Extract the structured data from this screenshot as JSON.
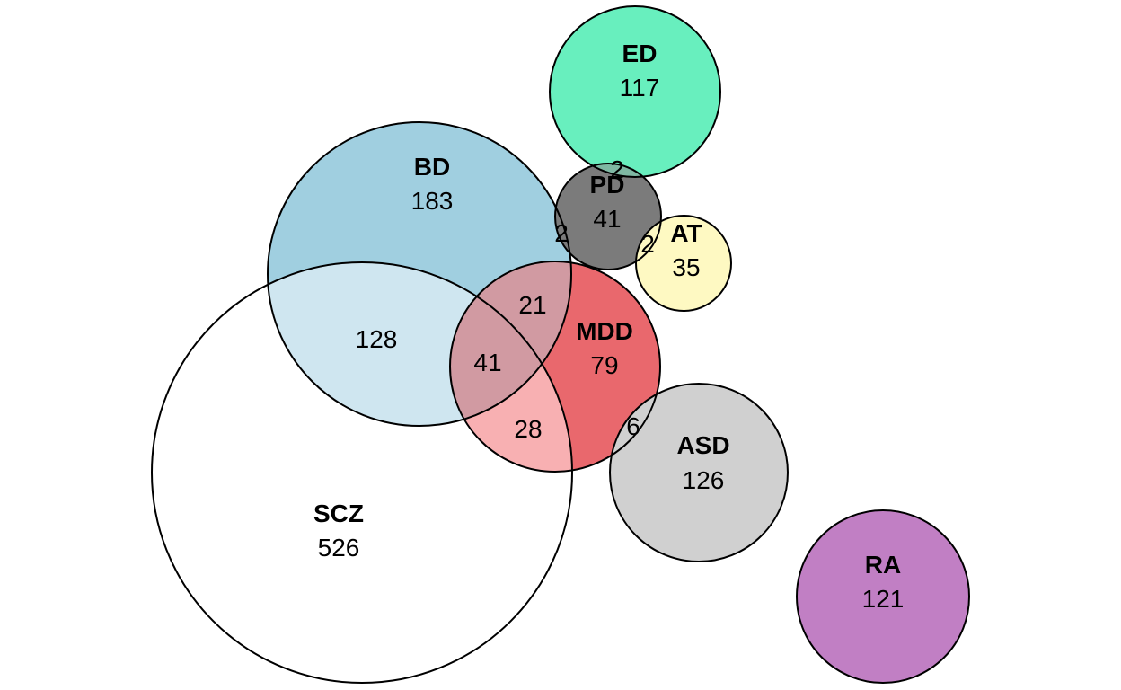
{
  "chart_data": {
    "type": "euler",
    "sets": [
      {
        "id": "scz",
        "name": "SCZ",
        "count": "526",
        "color": "#ffffff"
      },
      {
        "id": "bd",
        "name": "BD",
        "count": "183",
        "color": "#a0cfe0"
      },
      {
        "id": "mdd",
        "name": "MDD",
        "count": "79",
        "color": "#e9686d"
      },
      {
        "id": "ed",
        "name": "ED",
        "count": "117",
        "color": "#68efbe"
      },
      {
        "id": "pd",
        "name": "PD",
        "count": "41",
        "color": "#7b7b7b"
      },
      {
        "id": "at",
        "name": "AT",
        "count": "35",
        "color": "#fef9c2"
      },
      {
        "id": "asd",
        "name": "ASD",
        "count": "126",
        "color": "#d0d0d0"
      },
      {
        "id": "ra",
        "name": "RA",
        "count": "121",
        "color": "#c17fc4"
      }
    ],
    "overlap_counts": [
      {
        "sets": [
          "SCZ",
          "BD"
        ],
        "count": "128"
      },
      {
        "sets": [
          "BD",
          "MDD"
        ],
        "count": "21"
      },
      {
        "sets": [
          "SCZ",
          "BD",
          "MDD"
        ],
        "count": "41"
      },
      {
        "sets": [
          "SCZ",
          "MDD"
        ],
        "count": "28"
      },
      {
        "sets": [
          "MDD",
          "ASD"
        ],
        "count": "6"
      },
      {
        "sets": [
          "ED",
          "PD"
        ],
        "count": "2"
      },
      {
        "sets": [
          "BD",
          "PD"
        ],
        "count": "2"
      },
      {
        "sets": [
          "PD",
          "AT"
        ],
        "count": "2"
      }
    ],
    "colors": {
      "scz_bd_overlap": "#cfe6f0",
      "triple_overlap": "#dfbcc2",
      "bd_mdd_overlap": "#d19aa2",
      "scz_mdd_overlap": "#f8b0b2",
      "ed_pd_overlap": "#7fb8a3",
      "outline": "#000000"
    }
  }
}
